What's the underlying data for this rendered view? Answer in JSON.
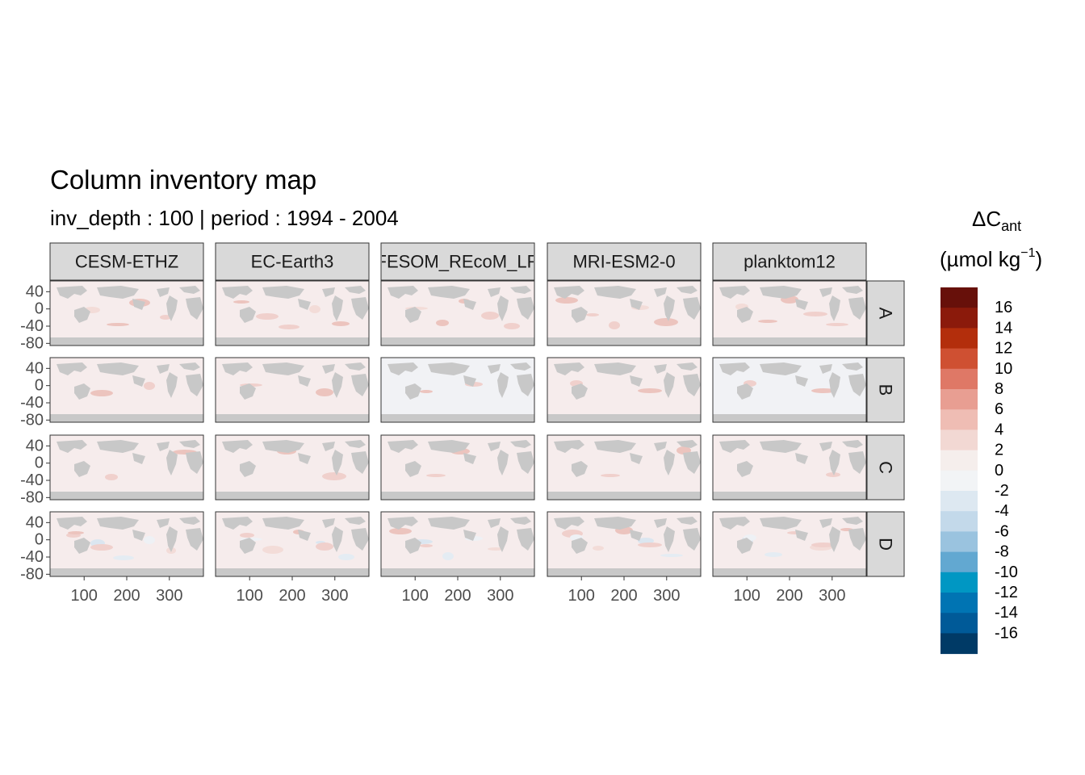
{
  "chart_data": {
    "type": "heatmap",
    "title": "Column inventory map",
    "subtitle": "inv_depth : 100 | period : 1994 - 2004",
    "column_facets": [
      "CESM-ETHZ",
      "EC-Earth3",
      "FESOM_REcoM_LR",
      "MRI-ESM2-0",
      "planktom12"
    ],
    "row_facets": [
      "A",
      "B",
      "C",
      "D"
    ],
    "x_ticks": [
      "100",
      "200",
      "300"
    ],
    "x_tick_values": [
      100,
      200,
      300
    ],
    "y_ticks": [
      "40",
      "0",
      "-40",
      "-80"
    ],
    "y_tick_values": [
      40,
      0,
      -40,
      -80
    ],
    "xlim": [
      20,
      380
    ],
    "ylim": [
      -85,
      65
    ],
    "legend": {
      "title_main": "ΔC",
      "title_sub": "ant",
      "title_unit_pre": "(µmol kg",
      "title_unit_sup": "−1",
      "title_unit_post": ")",
      "labels": [
        "16",
        "14",
        "12",
        "10",
        "8",
        "6",
        "4",
        "2",
        "0",
        "-2",
        "-4",
        "-6",
        "-8",
        "-10",
        "-12",
        "-14",
        "-16"
      ],
      "colors": [
        "#67100a",
        "#8b1a0b",
        "#b32e0c",
        "#cf5032",
        "#df7866",
        "#e89e92",
        "#efbdb4",
        "#f2d8d3",
        "#f5eeec",
        "#f2f4f6",
        "#dde8f1",
        "#c3d9ea",
        "#9ac3df",
        "#62a8d1",
        "#0097c3",
        "#0074b3",
        "#005a98",
        "#003a66"
      ]
    },
    "panel_background": "#f6ecec",
    "land_color": "#c8c8c8"
  }
}
